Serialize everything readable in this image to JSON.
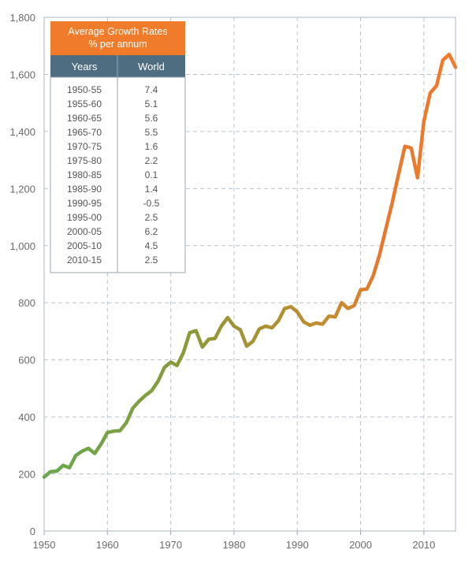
{
  "chart_data": {
    "type": "line",
    "title": "",
    "xlabel": "",
    "ylabel": "",
    "xlim": [
      1950,
      2015
    ],
    "ylim": [
      0,
      1800
    ],
    "x_ticks": [
      1950,
      1960,
      1970,
      1980,
      1990,
      2000,
      2010
    ],
    "y_ticks": [
      0,
      200,
      400,
      600,
      800,
      1000,
      1200,
      1400,
      1600,
      1800
    ],
    "x_tick_labels": [
      "1950",
      "1960",
      "1970",
      "1980",
      "1990",
      "2000",
      "2010"
    ],
    "y_tick_labels": [
      "0",
      "200",
      "400",
      "600",
      "800",
      "1,000",
      "1,200",
      "1,400",
      "1,600",
      "1,800"
    ],
    "grid": true,
    "gradient_colors": [
      "#6aa84f",
      "#8a9a3a",
      "#c98a2e",
      "#e8772e"
    ],
    "series": [
      {
        "x": [
          1950,
          1951,
          1952,
          1953,
          1954,
          1955,
          1956,
          1957,
          1958,
          1959,
          1960,
          1961,
          1962,
          1963,
          1964,
          1965,
          1966,
          1967,
          1968,
          1969,
          1970,
          1971,
          1972,
          1973,
          1974,
          1975,
          1976,
          1977,
          1978,
          1979,
          1980,
          1981,
          1982,
          1983,
          1984,
          1985,
          1986,
          1987,
          1988,
          1989,
          1990,
          1991,
          1992,
          1993,
          1994,
          1995,
          1996,
          1997,
          1998,
          1999,
          2000,
          2001,
          2002,
          2003,
          2004,
          2005,
          2006,
          2007,
          2008,
          2009,
          2010,
          2011,
          2012,
          2013,
          2014,
          2015
        ],
        "values": [
          189,
          208,
          210,
          230,
          222,
          265,
          280,
          290,
          272,
          305,
          345,
          350,
          352,
          380,
          430,
          455,
          475,
          492,
          525,
          573,
          592,
          580,
          625,
          695,
          702,
          645,
          672,
          675,
          718,
          748,
          718,
          705,
          648,
          665,
          708,
          718,
          712,
          736,
          780,
          786,
          768,
          733,
          721,
          729,
          725,
          753,
          750,
          800,
          780,
          790,
          845,
          848,
          895,
          968,
          1060,
          1150,
          1250,
          1348,
          1342,
          1238,
          1435,
          1535,
          1560,
          1650,
          1670,
          1625
        ]
      }
    ]
  },
  "table": {
    "title_line1": "Average Growth Rates",
    "title_line2": "% per annum",
    "header_color": "#f07b2a",
    "subheader_color": "#4f6d80",
    "columns": [
      "Years",
      "World"
    ],
    "rows": [
      [
        "1950-55",
        "7.4"
      ],
      [
        "1955-60",
        "5.1"
      ],
      [
        "1960-65",
        "5.6"
      ],
      [
        "1965-70",
        "5.5"
      ],
      [
        "1970-75",
        "1.6"
      ],
      [
        "1975-80",
        "2.2"
      ],
      [
        "1980-85",
        "0.1"
      ],
      [
        "1985-90",
        "1.4"
      ],
      [
        "1990-95",
        "-0.5"
      ],
      [
        "1995-00",
        "2.5"
      ],
      [
        "2000-05",
        "6.2"
      ],
      [
        "2005-10",
        "4.5"
      ],
      [
        "2010-15",
        "2.5"
      ]
    ]
  }
}
